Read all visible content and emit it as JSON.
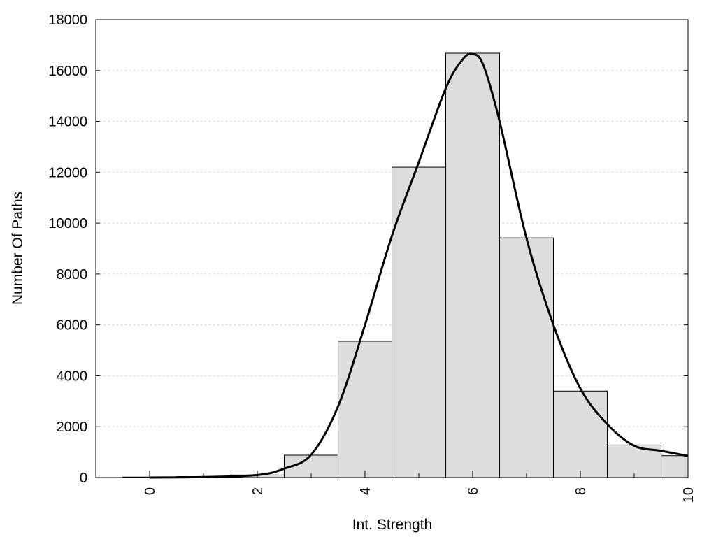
{
  "chart_data": {
    "type": "bar",
    "title": "",
    "xlabel": "Int. Strength",
    "ylabel": "Number Of Paths",
    "xlim": [
      -1,
      10
    ],
    "ylim": [
      0,
      18000
    ],
    "x_ticks": [
      0,
      2,
      4,
      6,
      8,
      10
    ],
    "y_ticks": [
      0,
      2000,
      4000,
      6000,
      8000,
      10000,
      12000,
      14000,
      16000,
      18000
    ],
    "grid": "horizontal dotted",
    "legend": "none",
    "bar_color": "#dddddd",
    "series": [
      {
        "type": "bar",
        "x": [
          0,
          1,
          2,
          3,
          4,
          5,
          6,
          7,
          8,
          9,
          10
        ],
        "values": [
          20,
          40,
          100,
          880,
          5360,
          12200,
          16680,
          9420,
          3400,
          1280,
          860
        ]
      },
      {
        "type": "line",
        "x": [
          0,
          1,
          2,
          2.5,
          3,
          3.5,
          4,
          4.5,
          5,
          5.5,
          5.8,
          6,
          6.2,
          6.5,
          7,
          7.5,
          8,
          8.5,
          9,
          9.5,
          10
        ],
        "values": [
          0,
          20,
          100,
          350,
          900,
          2800,
          6000,
          9500,
          12400,
          15300,
          16400,
          16650,
          16200,
          14000,
          9400,
          6000,
          3500,
          2100,
          1250,
          1050,
          850
        ]
      }
    ]
  }
}
